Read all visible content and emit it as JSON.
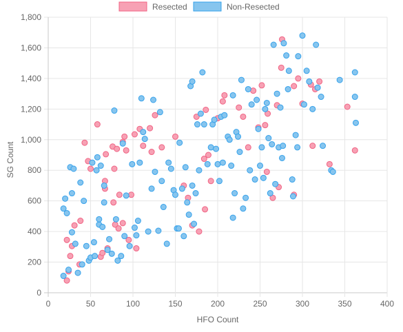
{
  "chart_data": {
    "type": "scatter",
    "xlabel": "HFO Count",
    "ylabel": "SG Count",
    "xlim": [
      0,
      400
    ],
    "ylim": [
      0,
      1800
    ],
    "x_ticks": [
      0,
      50,
      100,
      150,
      200,
      250,
      300,
      350,
      400
    ],
    "y_ticks": [
      0,
      200,
      400,
      600,
      800,
      1000,
      1200,
      1400,
      1600,
      1800
    ],
    "x_tick_labels": [
      "0",
      "50",
      "100",
      "150",
      "200",
      "250",
      "300",
      "350",
      "400"
    ],
    "y_tick_labels": [
      "0",
      "200",
      "400",
      "600",
      "800",
      "1,000",
      "1,200",
      "1,400",
      "1,600",
      "1,800"
    ],
    "grid": true,
    "legend_position": "top-center",
    "series": [
      {
        "name": "Resected",
        "fill": "#f7a1b4",
        "stroke": "#f06384",
        "points": [
          [
            22,
            80
          ],
          [
            22,
            345
          ],
          [
            24,
            140
          ],
          [
            26,
            240
          ],
          [
            28,
            305
          ],
          [
            31,
            440
          ],
          [
            37,
            185
          ],
          [
            38,
            470
          ],
          [
            43,
            980
          ],
          [
            47,
            860
          ],
          [
            50,
            810
          ],
          [
            58,
            1100
          ],
          [
            62,
            235
          ],
          [
            64,
            260
          ],
          [
            67,
            680
          ],
          [
            67,
            730
          ],
          [
            68,
            905
          ],
          [
            70,
            290
          ],
          [
            76,
            955
          ],
          [
            77,
            590
          ],
          [
            78,
            810
          ],
          [
            79,
            445
          ],
          [
            81,
            940
          ],
          [
            83,
            420
          ],
          [
            84,
            640
          ],
          [
            88,
            985
          ],
          [
            88,
            455
          ],
          [
            90,
            1020
          ],
          [
            92,
            930
          ],
          [
            95,
            345
          ],
          [
            98,
            640
          ],
          [
            102,
            1035
          ],
          [
            104,
            290
          ],
          [
            108,
            1070
          ],
          [
            112,
            960
          ],
          [
            120,
            1075
          ],
          [
            122,
            920
          ],
          [
            126,
            1160
          ],
          [
            134,
            950
          ],
          [
            150,
            1020
          ],
          [
            160,
            700
          ],
          [
            165,
            620
          ],
          [
            170,
            440
          ],
          [
            175,
            1150
          ],
          [
            178,
            400
          ],
          [
            184,
            875
          ],
          [
            185,
            545
          ],
          [
            186,
            1195
          ],
          [
            189,
            900
          ],
          [
            192,
            730
          ],
          [
            200,
            1140
          ],
          [
            206,
            1250
          ],
          [
            208,
            1290
          ],
          [
            225,
            1210
          ],
          [
            230,
            1150
          ],
          [
            236,
            950
          ],
          [
            242,
            1320
          ],
          [
            248,
            1080
          ],
          [
            252,
            1355
          ],
          [
            256,
            1095
          ],
          [
            258,
            790
          ],
          [
            259,
            1170
          ],
          [
            265,
            620
          ],
          [
            270,
            1225
          ],
          [
            272,
            690
          ],
          [
            275,
            1470
          ],
          [
            276,
            1655
          ],
          [
            290,
            640
          ],
          [
            290,
            1350
          ],
          [
            295,
            1400
          ],
          [
            300,
            1235
          ],
          [
            310,
            1360
          ],
          [
            312,
            960
          ],
          [
            315,
            1330
          ],
          [
            320,
            1380
          ],
          [
            332,
            840
          ],
          [
            353,
            1215
          ],
          [
            362,
            930
          ]
        ]
      },
      {
        "name": "Non-Resected",
        "fill": "#87c5ee",
        "stroke": "#36a2eb",
        "points": [
          [
            18,
            110
          ],
          [
            18,
            550
          ],
          [
            20,
            615
          ],
          [
            22,
            520
          ],
          [
            24,
            150
          ],
          [
            26,
            820
          ],
          [
            28,
            395
          ],
          [
            28,
            650
          ],
          [
            30,
            810
          ],
          [
            32,
            320
          ],
          [
            35,
            130
          ],
          [
            38,
            720
          ],
          [
            40,
            185
          ],
          [
            42,
            600
          ],
          [
            45,
            305
          ],
          [
            48,
            210
          ],
          [
            50,
            230
          ],
          [
            52,
            850
          ],
          [
            54,
            330
          ],
          [
            55,
            240
          ],
          [
            57,
            800
          ],
          [
            58,
            885
          ],
          [
            60,
            445
          ],
          [
            60,
            480
          ],
          [
            62,
            830
          ],
          [
            64,
            430
          ],
          [
            66,
            700
          ],
          [
            66,
            590
          ],
          [
            70,
            280
          ],
          [
            72,
            350
          ],
          [
            75,
            255
          ],
          [
            78,
            1190
          ],
          [
            80,
            480
          ],
          [
            82,
            210
          ],
          [
            86,
            240
          ],
          [
            88,
            975
          ],
          [
            90,
            370
          ],
          [
            92,
            635
          ],
          [
            96,
            305
          ],
          [
            99,
            840
          ],
          [
            102,
            425
          ],
          [
            104,
            375
          ],
          [
            106,
            470
          ],
          [
            108,
            850
          ],
          [
            110,
            1270
          ],
          [
            112,
            1050
          ],
          [
            114,
            1005
          ],
          [
            118,
            400
          ],
          [
            122,
            680
          ],
          [
            124,
            1260
          ],
          [
            126,
            790
          ],
          [
            130,
            405
          ],
          [
            132,
            1180
          ],
          [
            134,
            730
          ],
          [
            136,
            560
          ],
          [
            140,
            320
          ],
          [
            142,
            850
          ],
          [
            145,
            810
          ],
          [
            148,
            670
          ],
          [
            150,
            640
          ],
          [
            152,
            420
          ],
          [
            154,
            420
          ],
          [
            155,
            980
          ],
          [
            158,
            680
          ],
          [
            160,
            370
          ],
          [
            162,
            820
          ],
          [
            164,
            590
          ],
          [
            166,
            510
          ],
          [
            168,
            1350
          ],
          [
            170,
            1380
          ],
          [
            170,
            700
          ],
          [
            172,
            450
          ],
          [
            174,
            650
          ],
          [
            176,
            1100
          ],
          [
            178,
            800
          ],
          [
            180,
            1170
          ],
          [
            182,
            1440
          ],
          [
            184,
            1100
          ],
          [
            188,
            840
          ],
          [
            192,
            950
          ],
          [
            194,
            1100
          ],
          [
            196,
            1130
          ],
          [
            198,
            940
          ],
          [
            200,
            840
          ],
          [
            202,
            730
          ],
          [
            204,
            1150
          ],
          [
            206,
            850
          ],
          [
            208,
            1160
          ],
          [
            212,
            1020
          ],
          [
            214,
            1000
          ],
          [
            216,
            830
          ],
          [
            218,
            1290
          ],
          [
            218,
            490
          ],
          [
            220,
            650
          ],
          [
            222,
            1050
          ],
          [
            224,
            1020
          ],
          [
            226,
            920
          ],
          [
            228,
            1390
          ],
          [
            230,
            550
          ],
          [
            233,
            620
          ],
          [
            236,
            1330
          ],
          [
            238,
            800
          ],
          [
            240,
            1230
          ],
          [
            244,
            740
          ],
          [
            246,
            1260
          ],
          [
            248,
            1070
          ],
          [
            250,
            830
          ],
          [
            252,
            950
          ],
          [
            254,
            750
          ],
          [
            256,
            1200
          ],
          [
            258,
            1240
          ],
          [
            260,
            1010
          ],
          [
            262,
            650
          ],
          [
            264,
            970
          ],
          [
            266,
            1620
          ],
          [
            268,
            710
          ],
          [
            270,
            1300
          ],
          [
            272,
            950
          ],
          [
            274,
            1210
          ],
          [
            276,
            880
          ],
          [
            277,
            960
          ],
          [
            278,
            1630
          ],
          [
            281,
            1550
          ],
          [
            283,
            1330
          ],
          [
            284,
            1450
          ],
          [
            288,
            740
          ],
          [
            289,
            630
          ],
          [
            292,
            1030
          ],
          [
            294,
            950
          ],
          [
            295,
            1545
          ],
          [
            300,
            1680
          ],
          [
            302,
            1230
          ],
          [
            305,
            1450
          ],
          [
            308,
            1380
          ],
          [
            312,
            1200
          ],
          [
            316,
            1620
          ],
          [
            318,
            1340
          ],
          [
            322,
            1280
          ],
          [
            324,
            960
          ],
          [
            334,
            800
          ],
          [
            336,
            790
          ],
          [
            344,
            1390
          ],
          [
            362,
            1440
          ],
          [
            362,
            1280
          ],
          [
            363,
            1110
          ]
        ]
      }
    ]
  }
}
